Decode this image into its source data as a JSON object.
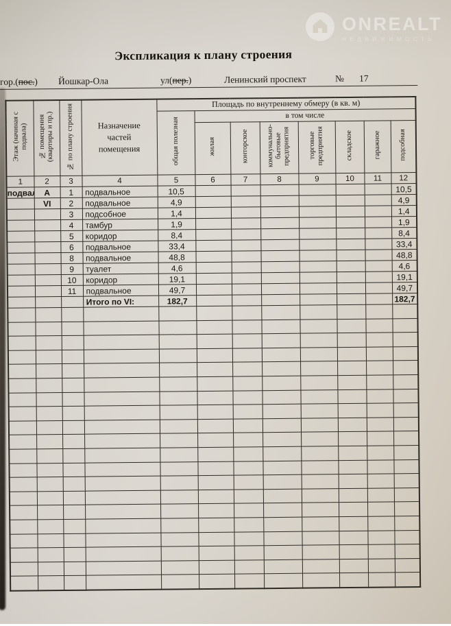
{
  "document": {
    "title": "Экспликация к плану строения",
    "address": {
      "city_prefix": "гор.(",
      "city_struck": "пос.",
      "paren_close": ")",
      "city": "Йошкар-Ола",
      "street_prefix": "ул(",
      "street_struck": "пер.",
      "street": "Ленинский проспект",
      "number_sign": "№",
      "number": "17"
    }
  },
  "watermark": {
    "brand": "ONREALT",
    "tagline": "НЕДВИЖИМОСТЬ",
    "icon": "house-in-circle-icon"
  },
  "table": {
    "headers": {
      "area_header": "Площадь по внутреннему обмеру (в кв. м)",
      "including": "в том числе"
    },
    "columns": [
      {
        "n": "1",
        "label": "Этаж (начиная с подвала)"
      },
      {
        "n": "2",
        "label": "№ помещения (квартиры и пр.)"
      },
      {
        "n": "3",
        "label": "№ по плану строения"
      },
      {
        "n": "4",
        "label": "Назначение частей помещения"
      },
      {
        "n": "5",
        "label": "общая полезная"
      },
      {
        "n": "6",
        "label": "жилая"
      },
      {
        "n": "7",
        "label": "конторское"
      },
      {
        "n": "8",
        "label": "коммунально-бытовые предприятия"
      },
      {
        "n": "9",
        "label": "торговые предприятия"
      },
      {
        "n": "10",
        "label": "складское"
      },
      {
        "n": "11",
        "label": "гаражное"
      },
      {
        "n": "12",
        "label": "подсобная"
      }
    ],
    "rows": [
      {
        "cells": [
          "подвал",
          "А",
          "1",
          "подвальное",
          "10,5",
          "",
          "",
          "",
          "",
          "",
          "",
          "10,5"
        ],
        "bold": false
      },
      {
        "cells": [
          "",
          "VI",
          "2",
          "подвальное",
          "4,9",
          "",
          "",
          "",
          "",
          "",
          "",
          "4,9"
        ],
        "bold": false
      },
      {
        "cells": [
          "",
          "",
          "3",
          "подсобное",
          "1,4",
          "",
          "",
          "",
          "",
          "",
          "",
          "1,4"
        ],
        "bold": false
      },
      {
        "cells": [
          "",
          "",
          "4",
          "тамбур",
          "1,9",
          "",
          "",
          "",
          "",
          "",
          "",
          "1,9"
        ],
        "bold": false
      },
      {
        "cells": [
          "",
          "",
          "5",
          "коридор",
          "8,4",
          "",
          "",
          "",
          "",
          "",
          "",
          "8,4"
        ],
        "bold": false
      },
      {
        "cells": [
          "",
          "",
          "6",
          "подвальное",
          "33,4",
          "",
          "",
          "",
          "",
          "",
          "",
          "33,4"
        ],
        "bold": false
      },
      {
        "cells": [
          "",
          "",
          "8",
          "подвальное",
          "48,8",
          "",
          "",
          "",
          "",
          "",
          "",
          "48,8"
        ],
        "bold": false
      },
      {
        "cells": [
          "",
          "",
          "9",
          "туалет",
          "4,6",
          "",
          "",
          "",
          "",
          "",
          "",
          "4,6"
        ],
        "bold": false
      },
      {
        "cells": [
          "",
          "",
          "10",
          "коридор",
          "19,1",
          "",
          "",
          "",
          "",
          "",
          "",
          "19,1"
        ],
        "bold": false
      },
      {
        "cells": [
          "",
          "",
          "11",
          "подвальное",
          "49,7",
          "",
          "",
          "",
          "",
          "",
          "",
          "49,7"
        ],
        "bold": false
      },
      {
        "cells": [
          "",
          "",
          "",
          "Итого по VI:",
          "182,7",
          "",
          "",
          "",
          "",
          "",
          "",
          "182,7"
        ],
        "bold": true
      }
    ],
    "empty_row_count": 20
  },
  "colors": {
    "paper": "#d9d5ce",
    "ink": "#1c1813",
    "grid_line": "#2e2a24",
    "watermark_white": "#ffffff"
  }
}
